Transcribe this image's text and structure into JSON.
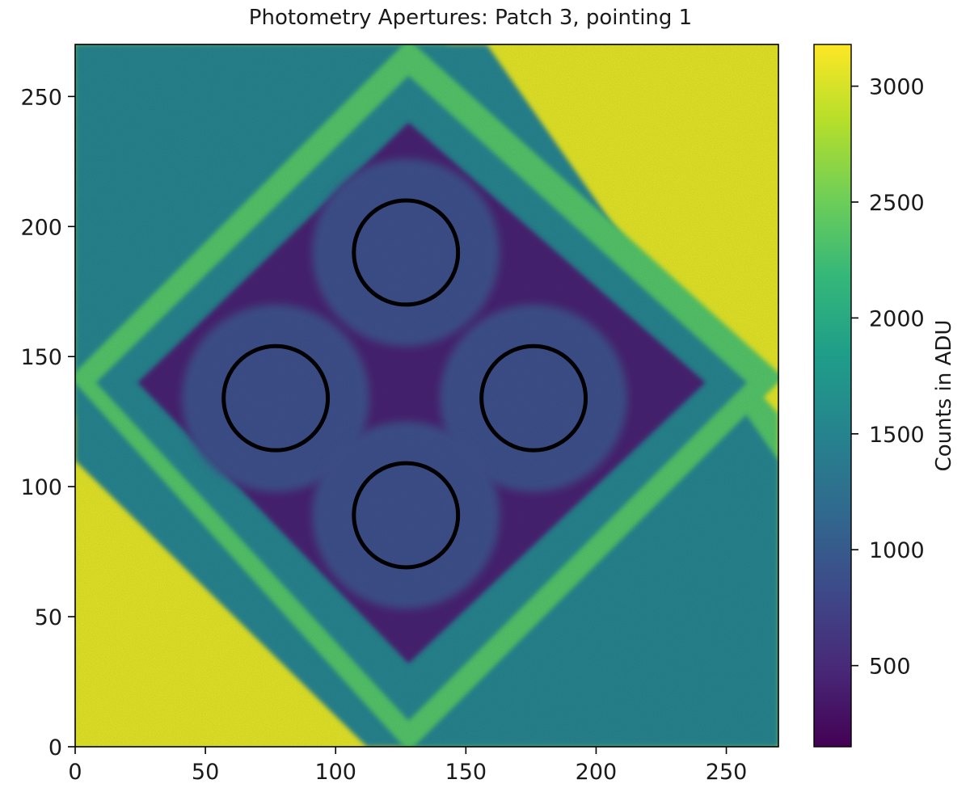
{
  "chart_data": {
    "type": "heatmap",
    "title": "Photometry Apertures: Patch 3, pointing 1",
    "xlabel": "",
    "ylabel": "",
    "xlim": [
      0,
      270
    ],
    "ylim": [
      0,
      270
    ],
    "x_ticks": [
      0,
      50,
      100,
      150,
      200,
      250
    ],
    "y_ticks": [
      0,
      50,
      100,
      150,
      200,
      250
    ],
    "colorbar": {
      "label": "Counts in ADU",
      "range": [
        150,
        3180
      ],
      "ticks": [
        500,
        1000,
        1500,
        2000,
        2500,
        3000
      ],
      "colormap": "viridis"
    },
    "image_regions": [
      {
        "name": "outer corners",
        "level": 3050
      },
      {
        "name": "edge wedges",
        "level": 2350
      },
      {
        "name": "outer diamond band",
        "level": 1500
      },
      {
        "name": "inner diamond",
        "level": 420
      },
      {
        "name": "aperture disk halos",
        "level": 880
      },
      {
        "name": "lens flare arcs",
        "level": 1350
      }
    ],
    "apertures": [
      {
        "x": 127,
        "y": 190,
        "r": 20
      },
      {
        "x": 77,
        "y": 134,
        "r": 20
      },
      {
        "x": 176,
        "y": 134,
        "r": 20
      },
      {
        "x": 127,
        "y": 89,
        "r": 20
      }
    ],
    "aperture_color": "#000000"
  }
}
